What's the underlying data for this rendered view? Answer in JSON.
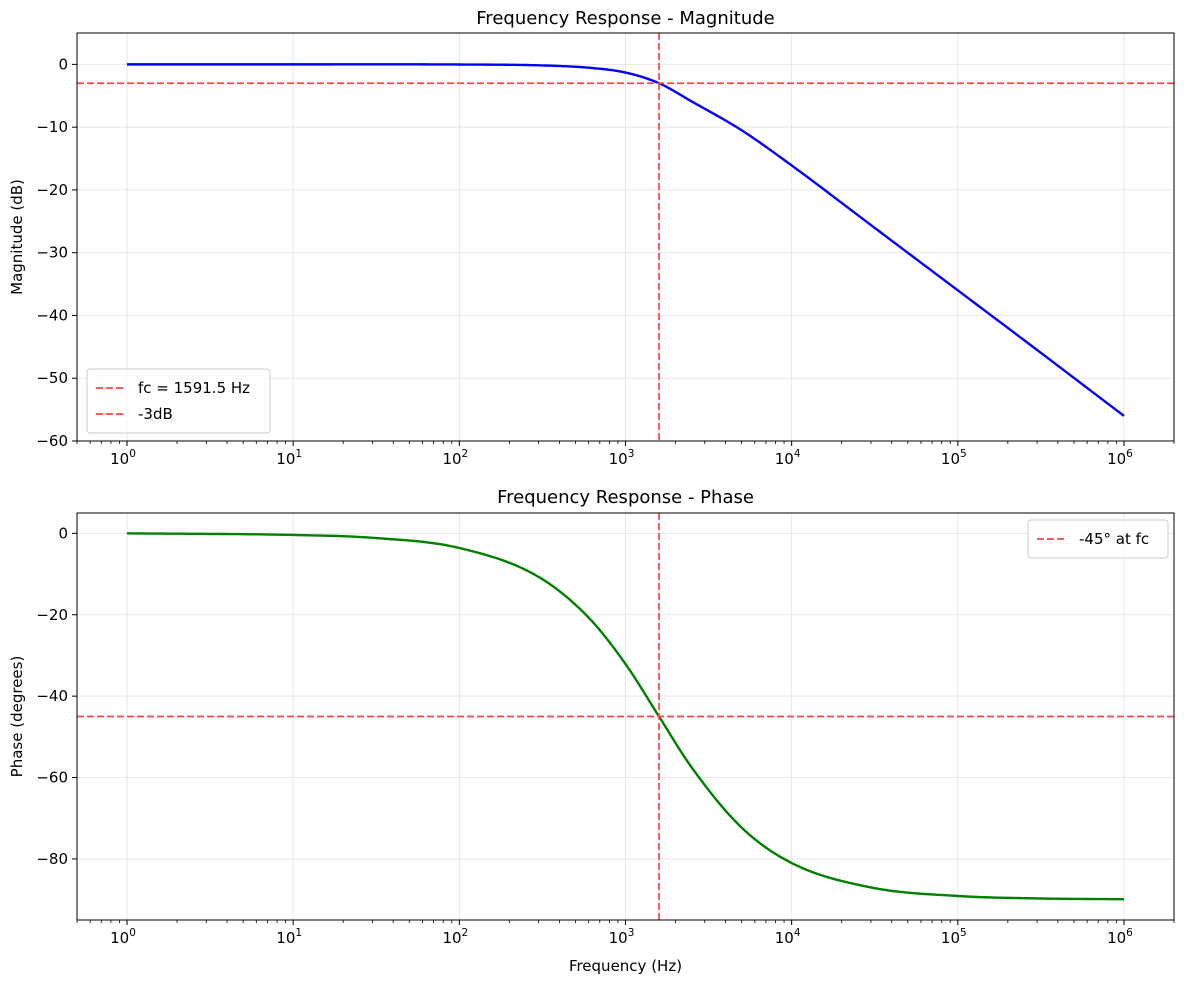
{
  "chart_data": [
    {
      "type": "line",
      "title": "Frequency Response - Magnitude",
      "xlabel": "",
      "ylabel": "Magnitude (dB)",
      "xscale": "log",
      "xlim": [
        0.5,
        2000000
      ],
      "ylim": [
        -60,
        5
      ],
      "xticks": [
        1,
        10,
        100,
        1000,
        10000,
        100000,
        1000000
      ],
      "xtick_labels": [
        {
          "base": "10",
          "exp": "0"
        },
        {
          "base": "10",
          "exp": "1"
        },
        {
          "base": "10",
          "exp": "2"
        },
        {
          "base": "10",
          "exp": "3"
        },
        {
          "base": "10",
          "exp": "4"
        },
        {
          "base": "10",
          "exp": "5"
        },
        {
          "base": "10",
          "exp": "6"
        }
      ],
      "yticks": [
        0,
        -10,
        -20,
        -30,
        -40,
        -50,
        -60
      ],
      "ytick_labels": [
        "0",
        "−10",
        "−20",
        "−30",
        "−40",
        "−50",
        "−60"
      ],
      "grid": true,
      "legend_position": "lower-left",
      "series": [
        {
          "kind": "curve",
          "color": "#0000ff",
          "x": [
            1,
            10,
            100,
            300,
            600,
            1000,
            1591.5,
            2500,
            5000,
            10000,
            30000,
            100000,
            300000,
            1000000
          ],
          "y": [
            0,
            0,
            -0.02,
            -0.15,
            -0.53,
            -1.3,
            -3.0,
            -5.9,
            -10.5,
            -16.1,
            -25.6,
            -36.0,
            -45.5,
            -56.0
          ]
        },
        {
          "kind": "vline",
          "name": "fc = 1591.5 Hz",
          "x": 1591.5,
          "color": "#ff4444"
        },
        {
          "kind": "hline",
          "name": "-3dB",
          "y": -3,
          "color": "#ff4444"
        }
      ]
    },
    {
      "type": "line",
      "title": "Frequency Response - Phase",
      "xlabel": "Frequency (Hz)",
      "ylabel": "Phase (degrees)",
      "xscale": "log",
      "xlim": [
        0.5,
        2000000
      ],
      "ylim": [
        -95,
        5
      ],
      "xticks": [
        1,
        10,
        100,
        1000,
        10000,
        100000,
        1000000
      ],
      "xtick_labels": [
        {
          "base": "10",
          "exp": "0"
        },
        {
          "base": "10",
          "exp": "1"
        },
        {
          "base": "10",
          "exp": "2"
        },
        {
          "base": "10",
          "exp": "3"
        },
        {
          "base": "10",
          "exp": "4"
        },
        {
          "base": "10",
          "exp": "5"
        },
        {
          "base": "10",
          "exp": "6"
        }
      ],
      "yticks": [
        0,
        -20,
        -40,
        -60,
        -80
      ],
      "ytick_labels": [
        "0",
        "−20",
        "−40",
        "−60",
        "−80"
      ],
      "grid": true,
      "legend_position": "upper-right",
      "series": [
        {
          "kind": "curve",
          "color": "#008000",
          "x": [
            1,
            10,
            30,
            100,
            300,
            600,
            1000,
            1591.5,
            2500,
            5000,
            10000,
            30000,
            100000,
            300000,
            1000000
          ],
          "y": [
            0,
            -0.4,
            -1.1,
            -3.6,
            -10.7,
            -20.7,
            -32.1,
            -45.0,
            -57.5,
            -72.3,
            -81.0,
            -87.0,
            -89.1,
            -89.7,
            -89.9
          ]
        },
        {
          "kind": "vline",
          "x": 1591.5,
          "color": "#ff4444"
        },
        {
          "kind": "hline",
          "name": "-45° at fc",
          "y": -45,
          "color": "#ff4444"
        }
      ]
    }
  ]
}
